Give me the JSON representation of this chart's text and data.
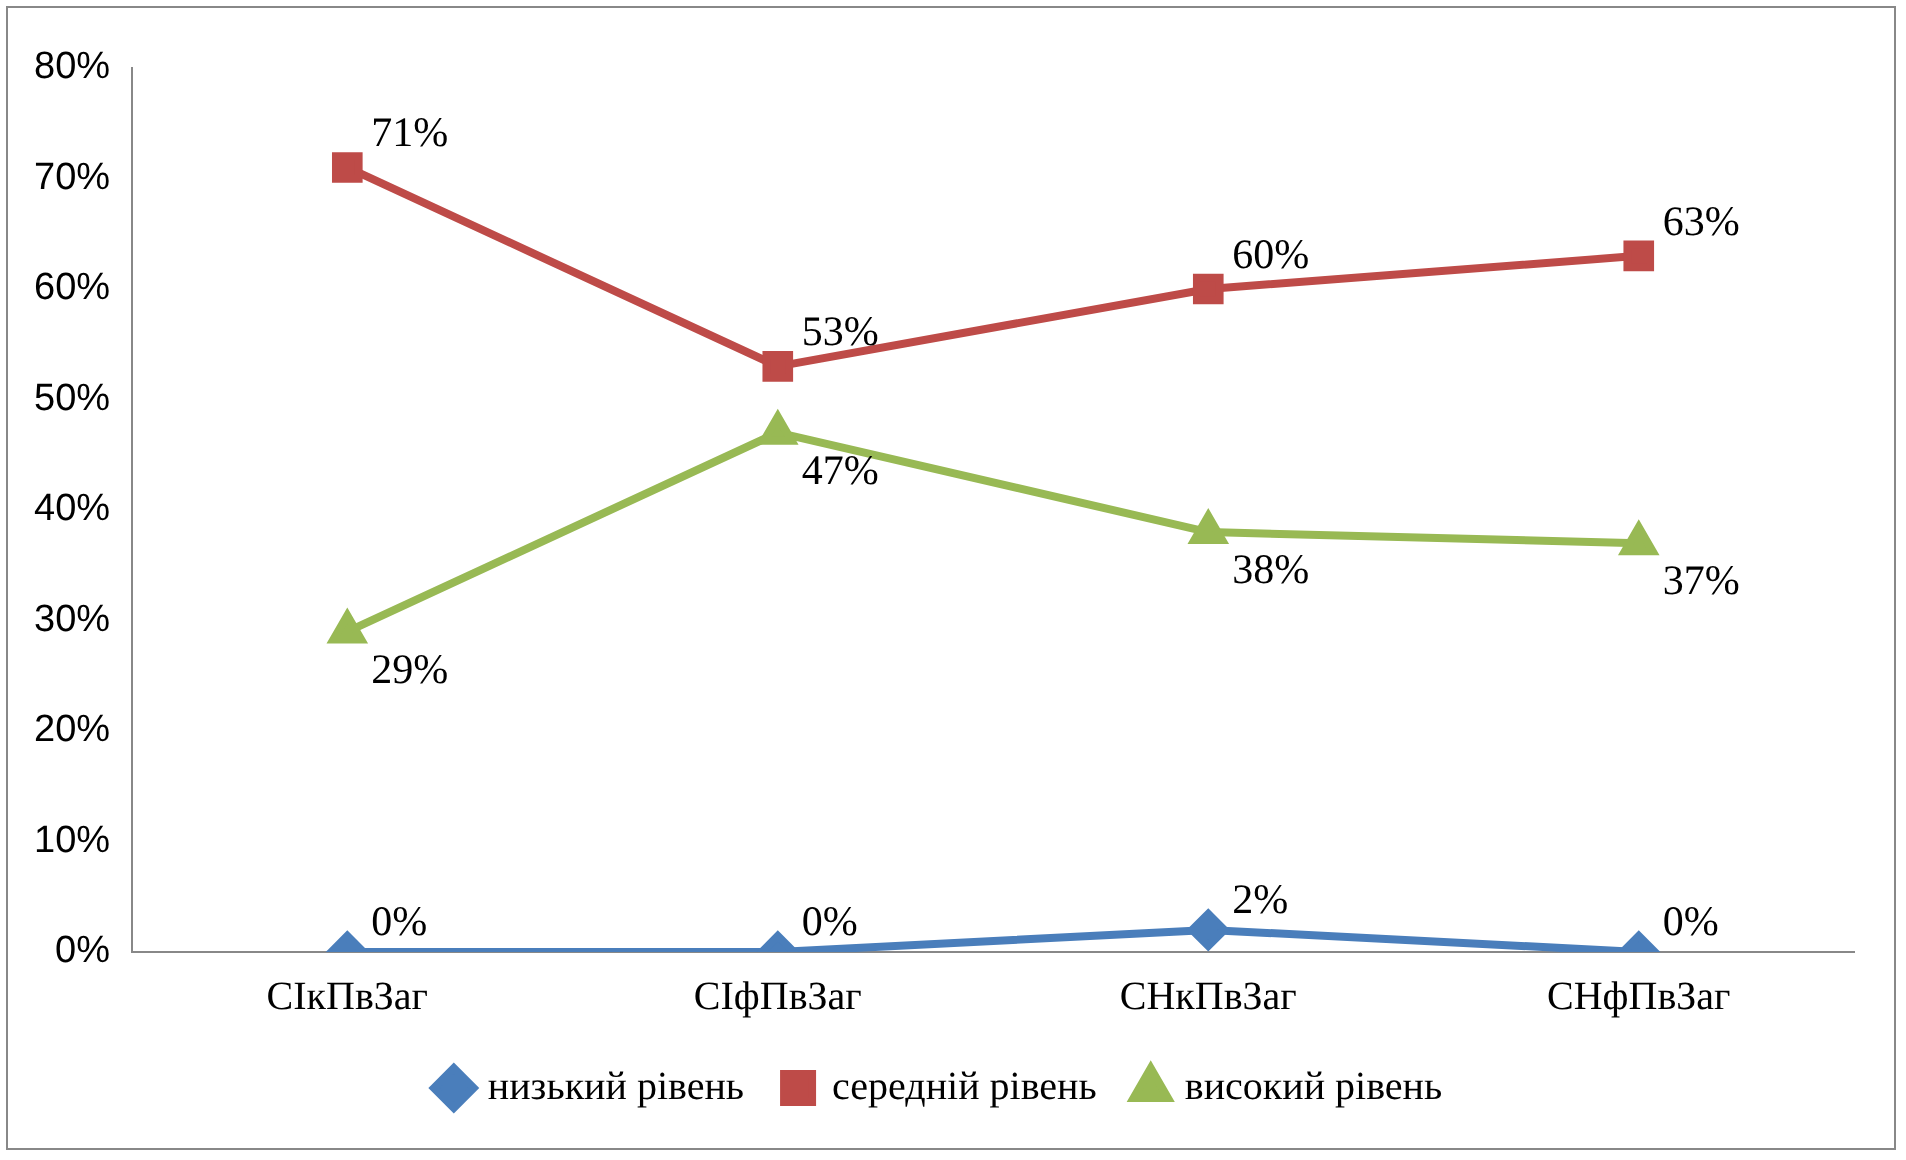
{
  "chart_data": {
    "type": "line",
    "categories": [
      "СІкПвЗаг",
      "СІфПвЗаг",
      "СНкПвЗаг",
      "СНфПвЗаг"
    ],
    "series": [
      {
        "name": "низький рівень",
        "color": "#4a7ebb",
        "marker": "diamond",
        "values": [
          0,
          0,
          2,
          0
        ],
        "value_labels": [
          "0%",
          "0%",
          "2%",
          "0%"
        ]
      },
      {
        "name": "середній рівень",
        "color": "#be4b48",
        "marker": "square",
        "values": [
          71,
          53,
          60,
          63
        ],
        "value_labels": [
          "71%",
          "53%",
          "60%",
          "63%"
        ]
      },
      {
        "name": "високий рівень",
        "color": "#98b954",
        "marker": "triangle",
        "values": [
          29,
          47,
          38,
          37
        ],
        "value_labels": [
          "29%",
          "47%",
          "38%",
          "37%"
        ]
      }
    ],
    "ylim": [
      0,
      80
    ],
    "yticks": [
      {
        "value": 0,
        "label": "0%"
      },
      {
        "value": 10,
        "label": "10%"
      },
      {
        "value": 20,
        "label": "20%"
      },
      {
        "value": 30,
        "label": "30%"
      },
      {
        "value": 40,
        "label": "40%"
      },
      {
        "value": 50,
        "label": "50%"
      },
      {
        "value": 60,
        "label": "60%"
      },
      {
        "value": 70,
        "label": "70%"
      },
      {
        "value": 80,
        "label": "80%"
      }
    ],
    "grid": false,
    "legend": "bottom"
  }
}
